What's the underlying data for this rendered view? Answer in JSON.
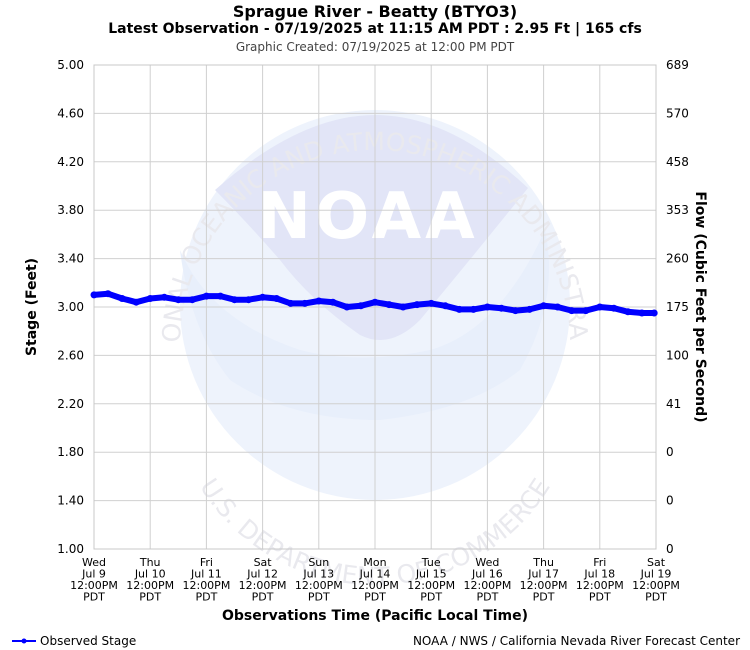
{
  "header": {
    "title": "Sprague River - Beatty (BTYO3)",
    "subtitle": "Latest Observation - 07/19/2025 at 11:15 AM PDT : 2.95 Ft | 165 cfs",
    "created": "Graphic Created: 07/19/2025 at 12:00 PM PDT"
  },
  "footer": {
    "legend_label": "Observed Stage",
    "credit": "NOAA / NWS / California Nevada River Forecast Center"
  },
  "watermark": {
    "logo_text": "NOAA",
    "top_arc": "NATIONAL OCEANIC AND ATMOSPHERIC ADMINISTRATION",
    "bottom_arc": "U.S. DEPARTMENT OF COMMERCE"
  },
  "colors": {
    "series": "#0000ff",
    "grid": "#d0d0d0",
    "watermark": "#e8eaf8"
  },
  "chart_data": {
    "type": "line",
    "ylabel": "Stage (Feet)",
    "y2label": "Flow (Cubic Feet per Second)",
    "xlabel": "Observations Time (Pacific Local Time)",
    "ylim": [
      1.0,
      5.0
    ],
    "yticks": [
      "5.00",
      "4.60",
      "4.20",
      "3.80",
      "3.40",
      "3.00",
      "2.60",
      "2.20",
      "1.80",
      "1.40",
      "1.00"
    ],
    "y2ticks": [
      "689",
      "570",
      "458",
      "353",
      "260",
      "175",
      "100",
      "41",
      "0",
      "0",
      "0"
    ],
    "xticks": [
      {
        "day": "Wed",
        "date": "Jul 9",
        "time": "12:00PM",
        "tz": "PDT"
      },
      {
        "day": "Thu",
        "date": "Jul 10",
        "time": "12:00PM",
        "tz": "PDT"
      },
      {
        "day": "Fri",
        "date": "Jul 11",
        "time": "12:00PM",
        "tz": "PDT"
      },
      {
        "day": "Sat",
        "date": "Jul 12",
        "time": "12:00PM",
        "tz": "PDT"
      },
      {
        "day": "Sun",
        "date": "Jul 13",
        "time": "12:00PM",
        "tz": "PDT"
      },
      {
        "day": "Mon",
        "date": "Jul 14",
        "time": "12:00PM",
        "tz": "PDT"
      },
      {
        "day": "Tue",
        "date": "Jul 15",
        "time": "12:00PM",
        "tz": "PDT"
      },
      {
        "day": "Wed",
        "date": "Jul 16",
        "time": "12:00PM",
        "tz": "PDT"
      },
      {
        "day": "Thu",
        "date": "Jul 17",
        "time": "12:00PM",
        "tz": "PDT"
      },
      {
        "day": "Fri",
        "date": "Jul 18",
        "time": "12:00PM",
        "tz": "PDT"
      },
      {
        "day": "Sat",
        "date": "Jul 19",
        "time": "12:00PM",
        "tz": "PDT"
      }
    ],
    "grid": true,
    "legend": "bottom-left",
    "series": [
      {
        "name": "Observed Stage",
        "x": [
          "2025-07-09 12:00",
          "2025-07-09 18:00",
          "2025-07-10 00:00",
          "2025-07-10 06:00",
          "2025-07-10 12:00",
          "2025-07-10 18:00",
          "2025-07-11 00:00",
          "2025-07-11 06:00",
          "2025-07-11 12:00",
          "2025-07-11 18:00",
          "2025-07-12 00:00",
          "2025-07-12 06:00",
          "2025-07-12 12:00",
          "2025-07-12 18:00",
          "2025-07-13 00:00",
          "2025-07-13 06:00",
          "2025-07-13 12:00",
          "2025-07-13 18:00",
          "2025-07-14 00:00",
          "2025-07-14 06:00",
          "2025-07-14 12:00",
          "2025-07-14 18:00",
          "2025-07-15 00:00",
          "2025-07-15 06:00",
          "2025-07-15 12:00",
          "2025-07-15 18:00",
          "2025-07-16 00:00",
          "2025-07-16 06:00",
          "2025-07-16 12:00",
          "2025-07-16 18:00",
          "2025-07-17 00:00",
          "2025-07-17 06:00",
          "2025-07-17 12:00",
          "2025-07-17 18:00",
          "2025-07-18 00:00",
          "2025-07-18 06:00",
          "2025-07-18 12:00",
          "2025-07-18 18:00",
          "2025-07-19 00:00",
          "2025-07-19 06:00",
          "2025-07-19 11:15"
        ],
        "y": [
          3.1,
          3.11,
          3.07,
          3.04,
          3.07,
          3.08,
          3.06,
          3.06,
          3.09,
          3.09,
          3.06,
          3.06,
          3.08,
          3.07,
          3.03,
          3.03,
          3.05,
          3.04,
          3.0,
          3.01,
          3.04,
          3.02,
          3.0,
          3.02,
          3.03,
          3.01,
          2.98,
          2.98,
          3.0,
          2.99,
          2.97,
          2.98,
          3.01,
          3.0,
          2.97,
          2.97,
          3.0,
          2.99,
          2.96,
          2.95,
          2.95
        ]
      }
    ]
  }
}
